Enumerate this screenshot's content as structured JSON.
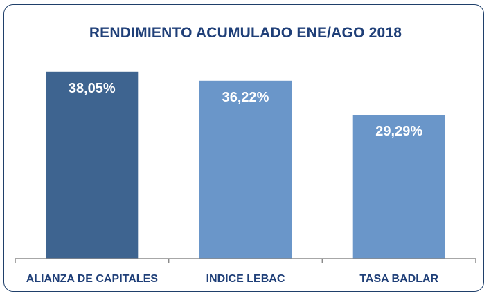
{
  "chart_data": {
    "type": "bar",
    "title": "RENDIMIENTO ACUMULADO ENE/AGO 2018",
    "categories": [
      "ALIANZA DE CAPITALES",
      "INDICE LEBAC",
      "TASA BADLAR"
    ],
    "values": [
      38.05,
      36.22,
      29.29
    ],
    "value_labels": [
      "38,05%",
      "36,22%",
      "29,29%"
    ],
    "colors": [
      "#3e6490",
      "#6a96c9",
      "#6a96c9"
    ],
    "xlabel": "",
    "ylabel": "",
    "ylim": [
      0,
      40
    ],
    "grid": false,
    "legend": "none"
  }
}
